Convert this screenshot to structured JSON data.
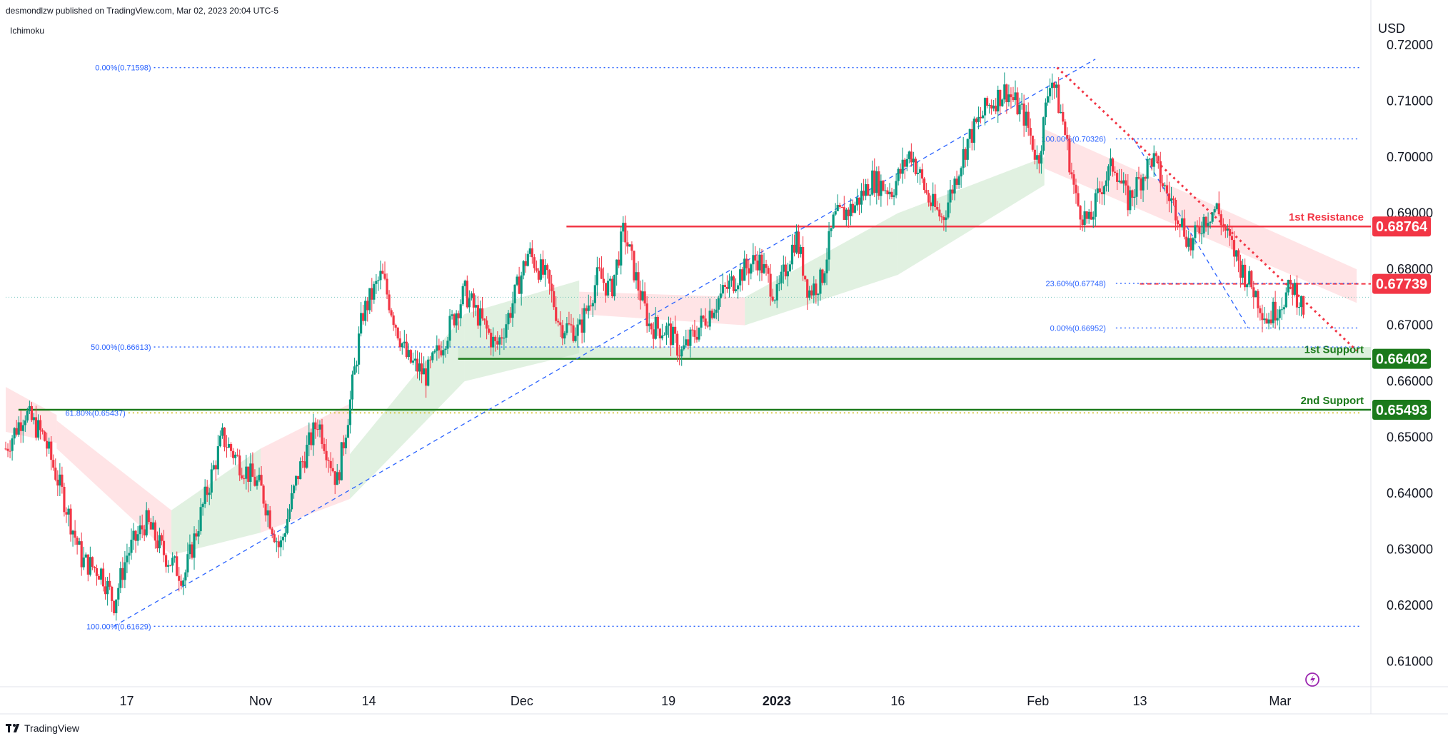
{
  "header": {
    "published": "desmondlzw published on TradingView.com, Mar 02, 2023 20:04 UTC-5",
    "indicator": "Ichimoku"
  },
  "footer": {
    "brand": "TradingView"
  },
  "colors": {
    "up": "#089981",
    "down": "#f23645",
    "resistance": "#f23645",
    "support": "#1b7a1b",
    "fib": "#2962ff",
    "cloud_green": "#c8e6c9",
    "cloud_red": "#ffcdd2",
    "axis_text": "#131722"
  },
  "chart_data": {
    "type": "candlestick",
    "symbol_currency": "USD",
    "y_axis": {
      "unit": "USD",
      "ticks": [
        "0.72000",
        "0.71000",
        "0.70000",
        "0.69000",
        "0.68000",
        "0.67000",
        "0.66000",
        "0.65000",
        "0.64000",
        "0.63000",
        "0.62000",
        "0.61000"
      ],
      "range": [
        0.6055,
        0.7255
      ]
    },
    "x_axis": {
      "ticks": [
        {
          "label": "17",
          "index": 19,
          "bold": false
        },
        {
          "label": "Nov",
          "index": 40,
          "bold": false
        },
        {
          "label": "14",
          "index": 57,
          "bold": false
        },
        {
          "label": "Dec",
          "index": 81,
          "bold": false
        },
        {
          "label": "19",
          "index": 104,
          "bold": false
        },
        {
          "label": "2023",
          "index": 121,
          "bold": true
        },
        {
          "label": "16",
          "index": 140,
          "bold": false
        },
        {
          "label": "Feb",
          "index": 162,
          "bold": false
        },
        {
          "label": "13",
          "index": 178,
          "bold": false
        },
        {
          "label": "Mar",
          "index": 200,
          "bold": false
        }
      ],
      "index_range": [
        0,
        212
      ]
    },
    "levels": [
      {
        "name": "1st Resistance",
        "value": 0.68764,
        "tag": "0.68764",
        "style": "solid",
        "color": "resistance"
      },
      {
        "name": "",
        "value": 0.67739,
        "tag": "0.67739",
        "style": "dashed",
        "color": "resistance"
      },
      {
        "name": "1st Support",
        "value": 0.66402,
        "tag": "0.66402",
        "style": "solid",
        "color": "support",
        "zone_top": 0.66613
      },
      {
        "name": "2nd Support",
        "value": 0.65493,
        "tag": "0.65493",
        "style": "solid",
        "color": "support"
      }
    ],
    "fib_labels": [
      {
        "text": "0.00%(0.71598)",
        "value": 0.71598
      },
      {
        "text": "50.00%(0.66613)",
        "value": 0.66613
      },
      {
        "text": "61.80%(0.65437)",
        "value": 0.65437
      },
      {
        "text": "100.00%(0.61629)",
        "value": 0.61629
      },
      {
        "text": "100.00%(0.70326)",
        "value": 0.70326
      },
      {
        "text": "23.60%(0.67748)",
        "value": 0.67748
      },
      {
        "text": "0.00%(0.66952)",
        "value": 0.66952
      }
    ],
    "trendlines": [
      {
        "from": {
          "index": 17,
          "value": 0.6163
        },
        "to": {
          "index": 171,
          "value": 0.7175
        },
        "style": "dashed",
        "color": "fib"
      },
      {
        "from": {
          "index": 165,
          "value": 0.716
        },
        "to": {
          "index": 212,
          "value": 0.6655
        },
        "style": "dotted",
        "color": "resistance"
      },
      {
        "from": {
          "index": 177,
          "value": 0.7033
        },
        "to": {
          "index": 195,
          "value": 0.6695
        },
        "style": "dashed",
        "color": "fib"
      }
    ],
    "close_path": [
      [
        0,
        0.648
      ],
      [
        3,
        0.6545
      ],
      [
        6,
        0.65
      ],
      [
        9,
        0.6395
      ],
      [
        12,
        0.628
      ],
      [
        15,
        0.626
      ],
      [
        17,
        0.6205
      ],
      [
        19,
        0.629
      ],
      [
        22,
        0.635
      ],
      [
        25,
        0.629
      ],
      [
        28,
        0.625
      ],
      [
        31,
        0.638
      ],
      [
        34,
        0.65
      ],
      [
        37,
        0.645
      ],
      [
        40,
        0.641
      ],
      [
        43,
        0.63
      ],
      [
        46,
        0.644
      ],
      [
        49,
        0.653
      ],
      [
        52,
        0.642
      ],
      [
        54,
        0.656
      ],
      [
        56,
        0.672
      ],
      [
        59,
        0.679
      ],
      [
        61,
        0.671
      ],
      [
        63,
        0.664
      ],
      [
        66,
        0.661
      ],
      [
        69,
        0.668
      ],
      [
        72,
        0.676
      ],
      [
        75,
        0.67
      ],
      [
        77,
        0.666
      ],
      [
        79,
        0.672
      ],
      [
        82,
        0.683
      ],
      [
        85,
        0.678
      ],
      [
        87,
        0.67
      ],
      [
        90,
        0.669
      ],
      [
        93,
        0.679
      ],
      [
        95,
        0.676
      ],
      [
        97,
        0.687
      ],
      [
        99,
        0.678
      ],
      [
        101,
        0.67
      ],
      [
        104,
        0.669
      ],
      [
        106,
        0.665
      ],
      [
        109,
        0.67
      ],
      [
        112,
        0.675
      ],
      [
        115,
        0.679
      ],
      [
        118,
        0.682
      ],
      [
        121,
        0.675
      ],
      [
        124,
        0.686
      ],
      [
        126,
        0.676
      ],
      [
        128,
        0.678
      ],
      [
        130,
        0.689
      ],
      [
        133,
        0.691
      ],
      [
        136,
        0.696
      ],
      [
        139,
        0.694
      ],
      [
        142,
        0.701
      ],
      [
        145,
        0.692
      ],
      [
        147,
        0.689
      ],
      [
        149,
        0.696
      ],
      [
        151,
        0.703
      ],
      [
        154,
        0.709
      ],
      [
        157,
        0.712
      ],
      [
        160,
        0.707
      ],
      [
        162,
        0.699
      ],
      [
        164,
        0.715
      ],
      [
        166,
        0.706
      ],
      [
        168,
        0.692
      ],
      [
        170,
        0.688
      ],
      [
        172,
        0.695
      ],
      [
        174,
        0.699
      ],
      [
        176,
        0.692
      ],
      [
        178,
        0.696
      ],
      [
        180,
        0.7
      ],
      [
        182,
        0.694
      ],
      [
        184,
        0.69
      ],
      [
        186,
        0.684
      ],
      [
        188,
        0.689
      ],
      [
        190,
        0.691
      ],
      [
        192,
        0.685
      ],
      [
        194,
        0.68
      ],
      [
        196,
        0.676
      ],
      [
        198,
        0.671
      ],
      [
        200,
        0.674
      ],
      [
        202,
        0.677
      ],
      [
        204,
        0.672
      ]
    ],
    "cloud": [
      {
        "from": 0,
        "to": 8,
        "top_start": 0.659,
        "top_end": 0.654,
        "bot_start": 0.651,
        "bot_end": 0.649,
        "color": "cloud_red"
      },
      {
        "from": 8,
        "to": 26,
        "top_start": 0.653,
        "top_end": 0.637,
        "bot_start": 0.648,
        "bot_end": 0.629,
        "color": "cloud_red"
      },
      {
        "from": 26,
        "to": 40,
        "top_start": 0.637,
        "top_end": 0.648,
        "bot_start": 0.629,
        "bot_end": 0.633,
        "color": "cloud_green"
      },
      {
        "from": 40,
        "to": 54,
        "top_start": 0.648,
        "top_end": 0.656,
        "bot_start": 0.633,
        "bot_end": 0.639,
        "color": "cloud_red"
      },
      {
        "from": 54,
        "to": 72,
        "top_start": 0.647,
        "top_end": 0.672,
        "bot_start": 0.639,
        "bot_end": 0.66,
        "color": "cloud_green"
      },
      {
        "from": 72,
        "to": 90,
        "top_start": 0.672,
        "top_end": 0.678,
        "bot_start": 0.66,
        "bot_end": 0.665,
        "color": "cloud_green"
      },
      {
        "from": 90,
        "to": 116,
        "top_start": 0.676,
        "top_end": 0.675,
        "bot_start": 0.672,
        "bot_end": 0.67,
        "color": "cloud_red"
      },
      {
        "from": 116,
        "to": 140,
        "top_start": 0.675,
        "top_end": 0.69,
        "bot_start": 0.67,
        "bot_end": 0.679,
        "color": "cloud_green"
      },
      {
        "from": 140,
        "to": 163,
        "top_start": 0.69,
        "top_end": 0.7,
        "bot_start": 0.679,
        "bot_end": 0.695,
        "color": "cloud_green"
      },
      {
        "from": 163,
        "to": 212,
        "top_start": 0.705,
        "top_end": 0.68,
        "bot_start": 0.698,
        "bot_end": 0.674,
        "color": "cloud_red"
      }
    ]
  }
}
